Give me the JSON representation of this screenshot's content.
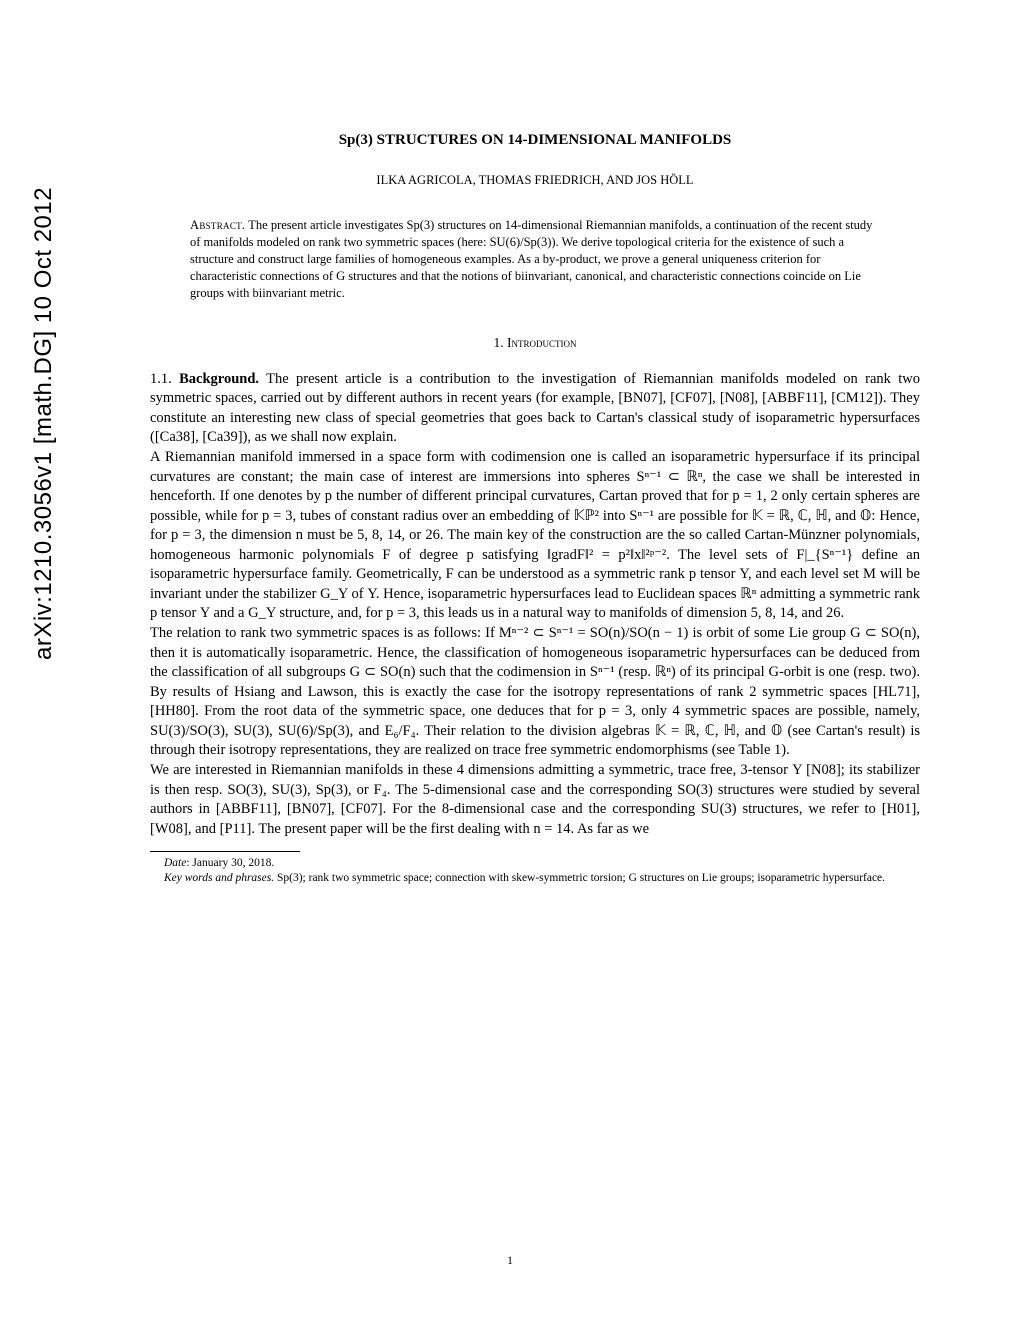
{
  "arxiv": {
    "identifier": "arXiv:1210.3056v1  [math.DG]  10 Oct 2012"
  },
  "title": "Sp(3) STRUCTURES ON 14-DIMENSIONAL MANIFOLDS",
  "authors": "ILKA AGRICOLA, THOMAS FRIEDRICH, AND JOS HÖLL",
  "abstract": {
    "label": "Abstract.",
    "text": " The present article investigates Sp(3) structures on 14-dimensional Riemannian manifolds, a continuation of the recent study of manifolds modeled on rank two symmetric spaces (here: SU(6)/Sp(3)). We derive topological criteria for the existence of such a structure and construct large families of homogeneous examples. As a by-product, we prove a general uniqueness criterion for characteristic connections of G structures and that the notions of biinvariant, canonical, and characteristic connections coincide on Lie groups with biinvariant metric."
  },
  "section": {
    "number": "1.",
    "title": "Introduction"
  },
  "subsection": {
    "number": "1.1.",
    "title": "Background."
  },
  "body": {
    "para1": " The present article is a contribution to the investigation of Riemannian manifolds modeled on rank two symmetric spaces, carried out by different authors in recent years (for example, [BN07], [CF07], [N08], [ABBF11], [CM12]). They constitute an interesting new class of special geometries that goes back to Cartan's classical study of isoparametric hypersurfaces ([Ca38], [Ca39]), as we shall now explain.",
    "para2": "A Riemannian manifold immersed in a space form with codimension one is called an isoparametric hypersurface if its principal curvatures are constant; the main case of interest are immersions into spheres Sⁿ⁻¹ ⊂ ℝⁿ, the case we shall be interested in henceforth. If one denotes by p the number of different principal curvatures, Cartan proved that for p = 1, 2 only certain spheres are possible, while for p = 3, tubes of constant radius over an embedding of 𝕂ℙ² into Sⁿ⁻¹ are possible for 𝕂 = ℝ, ℂ, ℍ, and 𝕆: Hence, for p = 3, the dimension n must be 5, 8, 14, or 26. The main key of the construction are the so called Cartan-Münzner polynomials, homogeneous harmonic polynomials F of degree p satisfying ‖gradF‖² = p²‖x‖²ᵖ⁻². The level sets of F|_{Sⁿ⁻¹} define an isoparametric hypersurface family. Geometrically, F can be understood as a symmetric rank p tensor Υ, and each level set M will be invariant under the stabilizer G_Υ of Υ. Hence, isoparametric hypersurfaces lead to Euclidean spaces ℝⁿ admitting a symmetric rank p tensor Υ and a G_Υ structure, and, for p = 3, this leads us in a natural way to manifolds of dimension 5, 8, 14, and 26.",
    "para3": "The relation to rank two symmetric spaces is as follows: If Mⁿ⁻² ⊂ Sⁿ⁻¹ = SO(n)/SO(n − 1) is orbit of some Lie group G ⊂ SO(n), then it is automatically isoparametric. Hence, the classification of homogeneous isoparametric hypersurfaces can be deduced from the classification of all subgroups G ⊂ SO(n) such that the codimension in Sⁿ⁻¹ (resp. ℝⁿ) of its principal G-orbit is one (resp. two). By results of Hsiang and Lawson, this is exactly the case for the isotropy representations of rank 2 symmetric spaces [HL71], [HH80]. From the root data of the symmetric space, one deduces that for p = 3, only 4 symmetric spaces are possible, namely, SU(3)/SO(3), SU(3), SU(6)/Sp(3), and E₆/F₄. Their relation to the division algebras 𝕂 = ℝ, ℂ, ℍ, and 𝕆 (see Cartan's result) is through their isotropy representations, they are realized on trace free symmetric endomorphisms (see Table 1).",
    "para4": "We are interested in Riemannian manifolds in these 4 dimensions admitting a symmetric, trace free, 3-tensor Υ [N08]; its stabilizer is then resp. SO(3), SU(3), Sp(3), or F₄. The 5-dimensional case and the corresponding SO(3) structures were studied by several authors in [ABBF11], [BN07], [CF07]. For the 8-dimensional case and the corresponding SU(3) structures, we refer to [H01], [W08], and [P11]. The present paper will be the first dealing with n = 14. As far as we"
  },
  "footnotes": {
    "date_label": "Date",
    "date_value": ": January 30, 2018.",
    "keywords_label": "Key words and phrases.",
    "keywords_value": " Sp(3); rank two symmetric space; connection with skew-symmetric torsion; G structures on Lie groups; isoparametric hypersurface."
  },
  "page_number": "1"
}
